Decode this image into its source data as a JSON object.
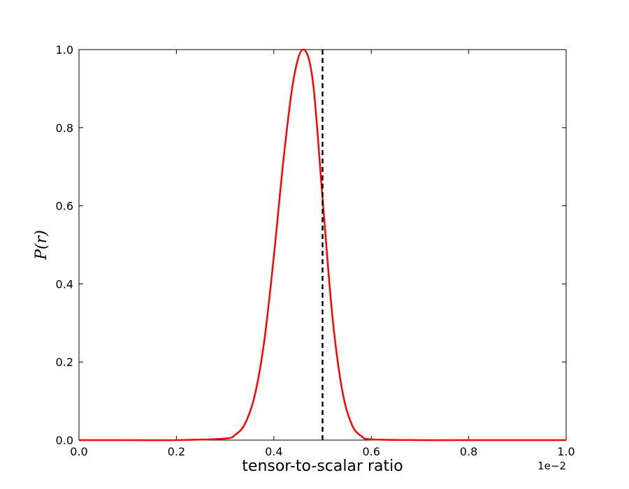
{
  "chart_data": {
    "type": "line",
    "title": "",
    "xlabel": "tensor-to-scalar ratio",
    "ylabel": "P(r)",
    "x_offset_label": "1e−2",
    "xlim": [
      0.0,
      1.0
    ],
    "ylim": [
      0.0,
      1.0
    ],
    "x_ticks": [
      "0.0",
      "0.2",
      "0.4",
      "0.6",
      "0.8",
      "1.0"
    ],
    "y_ticks": [
      "0.0",
      "0.2",
      "0.4",
      "0.6",
      "0.8",
      "1.0"
    ],
    "grid": false,
    "series": [
      {
        "color": "#ff0000",
        "style": "solid",
        "x": [
          0.0,
          0.1,
          0.2,
          0.3,
          0.32,
          0.34,
          0.36,
          0.38,
          0.4,
          0.42,
          0.44,
          0.46,
          0.48,
          0.5,
          0.52,
          0.54,
          0.56,
          0.58,
          0.6,
          0.7,
          0.8,
          0.9,
          1.0
        ],
        "y": [
          0.0,
          0.0,
          0.0,
          0.004,
          0.013,
          0.04,
          0.11,
          0.25,
          0.47,
          0.72,
          0.92,
          1.0,
          0.92,
          0.62,
          0.32,
          0.13,
          0.04,
          0.01,
          0.002,
          0.0,
          0.0,
          0.0,
          0.0
        ]
      }
    ],
    "vline": {
      "x": 0.5,
      "color": "#000000",
      "style": "dashed"
    }
  }
}
